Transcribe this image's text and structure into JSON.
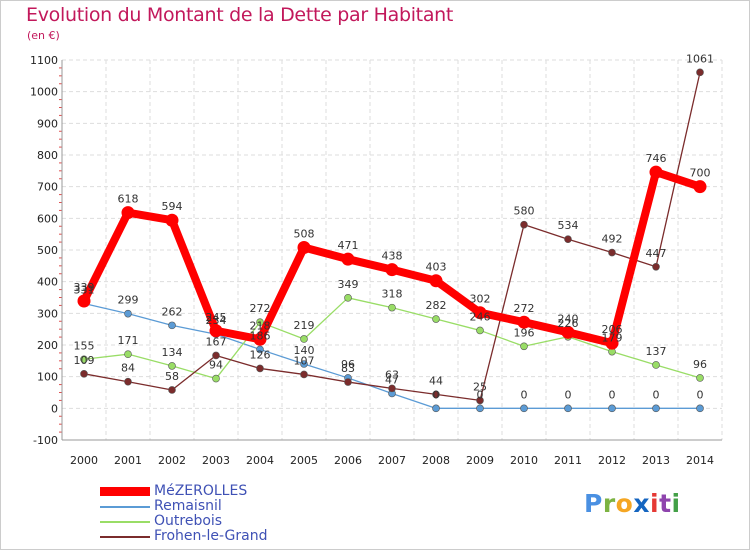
{
  "chart_data": {
    "type": "line",
    "title": "Evolution du Montant de la Dette par Habitant",
    "unit_label": "(en €)",
    "x": [
      "2000",
      "2001",
      "2002",
      "2003",
      "2004",
      "2005",
      "2006",
      "2007",
      "2008",
      "2009",
      "2010",
      "2011",
      "2012",
      "2013",
      "2014"
    ],
    "ylim": [
      -100,
      1100
    ],
    "yticks": [
      "-100",
      "0",
      "100",
      "200",
      "300",
      "400",
      "500",
      "600",
      "700",
      "800",
      "900",
      "1000",
      "1100"
    ],
    "grid": true,
    "legend_position": "bottom-left",
    "series": [
      {
        "name": "MéZEROLLES",
        "color": "#ff0000",
        "values": [
          339,
          618,
          594,
          245,
          218,
          508,
          471,
          438,
          403,
          302,
          272,
          240,
          206,
          746,
          700
        ],
        "labels": [
          "339",
          "618",
          "594",
          "245",
          "218",
          "508",
          "471",
          "438",
          "403",
          "302",
          "272",
          "240",
          "206",
          "746",
          "700"
        ]
      },
      {
        "name": "Remaisnil",
        "color": "#5b9bd5",
        "values": [
          331,
          299,
          262,
          234,
          186,
          140,
          96,
          47,
          0,
          0,
          0,
          0,
          0,
          0,
          0
        ],
        "labels": [
          "331",
          "299",
          "262",
          "234",
          "186",
          "140",
          "96",
          "47",
          "0",
          "0",
          "0",
          "0",
          "0",
          "0",
          "0"
        ]
      },
      {
        "name": "Outrebois",
        "color": "#99dd66",
        "values": [
          155,
          171,
          134,
          94,
          272,
          219,
          349,
          318,
          282,
          246,
          196,
          226,
          179,
          137,
          96
        ],
        "labels": [
          "155",
          "171",
          "134",
          "94",
          "272",
          "219",
          "349",
          "318",
          "282",
          "246",
          "196",
          "226",
          "179",
          "137",
          "96"
        ]
      },
      {
        "name": "Frohen-le-Grand",
        "color": "#7b2c2c",
        "values": [
          109,
          84,
          58,
          167,
          126,
          107,
          83,
          63,
          44,
          25,
          580,
          534,
          492,
          447,
          1061
        ],
        "labels": [
          "109",
          "84",
          "58",
          "167",
          "126",
          "107",
          "83",
          "63",
          "44",
          "25",
          "580",
          "534",
          "492",
          "447",
          "1061"
        ]
      }
    ]
  },
  "brand": {
    "letters": [
      "P",
      "r",
      "o",
      "x",
      "i",
      "t",
      "i"
    ],
    "colors": [
      "#4a90e2",
      "#7cb342",
      "#f5a623",
      "#1565c0",
      "#e53935",
      "#8e44ad",
      "#43a047"
    ]
  }
}
